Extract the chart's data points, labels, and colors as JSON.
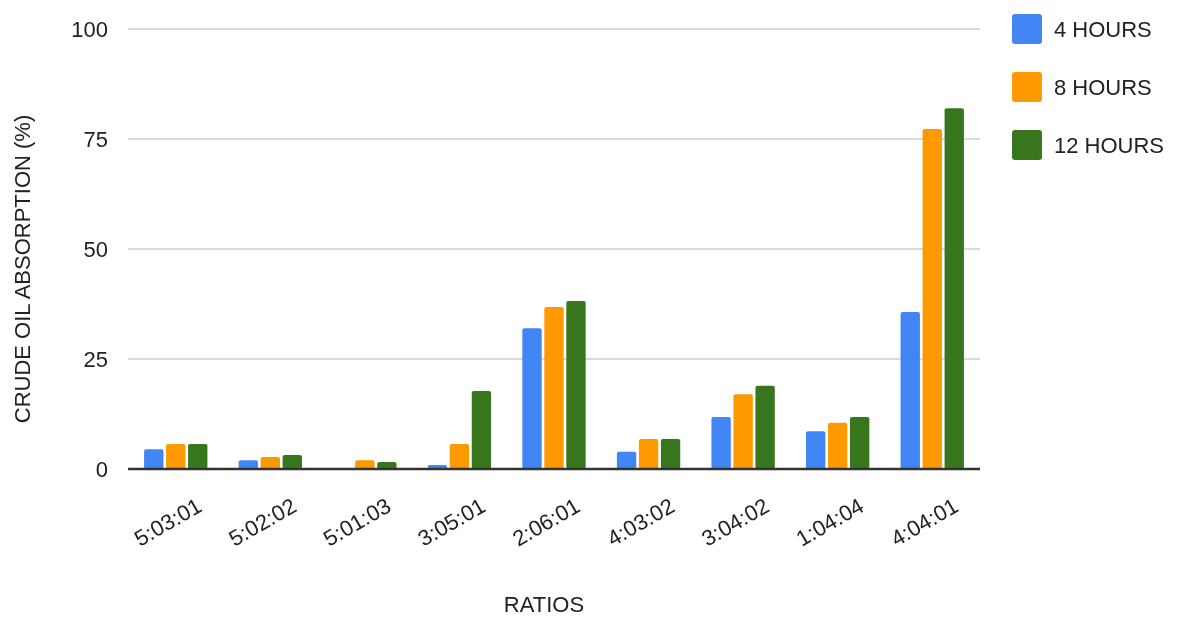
{
  "chart_data": {
    "type": "bar",
    "xlabel": "RATIOS",
    "ylabel": "CRUDE OIL ABSORPTION (%)",
    "categories": [
      "5:03:01",
      "5:02:02",
      "5:01:03",
      "3:05:01",
      "2:06:01",
      "4:03:02",
      "3:04:02",
      "1:04:04",
      "4:04:01"
    ],
    "series": [
      {
        "name": "4 HOURS",
        "color": "#4285f4",
        "values": [
          4.5,
          2,
          0,
          0.9,
          32,
          3.9,
          11.8,
          8.6,
          35.7
        ]
      },
      {
        "name": "8 HOURS",
        "color": "#ff9900",
        "values": [
          5.7,
          2.7,
          2,
          5.7,
          36.8,
          6.8,
          17,
          10.5,
          77.3
        ]
      },
      {
        "name": "12 HOURS",
        "color": "#38761d",
        "values": [
          5.7,
          3.2,
          1.6,
          17.7,
          38.2,
          6.8,
          18.9,
          11.8,
          82
        ]
      }
    ],
    "ylim": [
      0,
      100
    ],
    "yticks": [
      0,
      25,
      50,
      75,
      100
    ],
    "grid": "y",
    "legend": "top right"
  }
}
